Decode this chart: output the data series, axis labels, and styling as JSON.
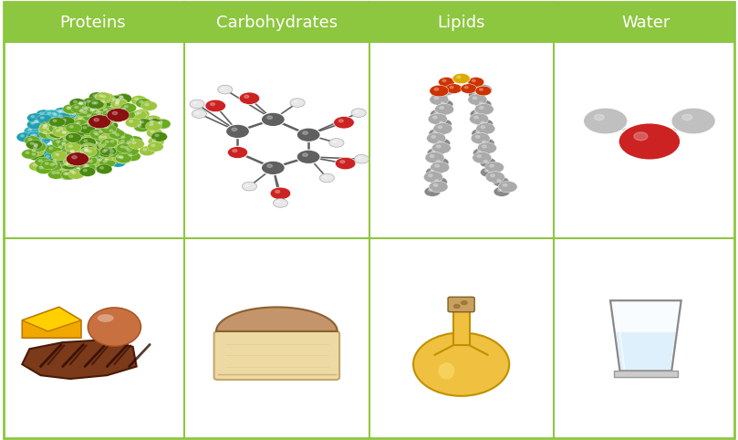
{
  "columns": [
    "Proteins",
    "Carbohydrates",
    "Lipids",
    "Water"
  ],
  "header_bg_color": "#8DC63F",
  "header_text_color": "#ffffff",
  "border_color": "#8DC63F",
  "bg_color": "#ffffff",
  "header_fontsize": 13,
  "fig_width": 8.09,
  "fig_height": 4.82,
  "col_divider_color": "#8DC63F",
  "row_divider_color": "#8DC63F",
  "protein_green_light": "#9DC63F",
  "protein_green_med": "#6AAB20",
  "protein_green_dark": "#4A8B10",
  "protein_teal": "#20A0B0",
  "protein_red": "#8B1010",
  "carb_gray": "#606060",
  "carb_red": "#CC2222",
  "carb_white": "#E8E8E8",
  "lipid_gray_light": "#C8C8C8",
  "lipid_gray_dark": "#888888",
  "lipid_red": "#CC3300",
  "water_red": "#CC2222",
  "water_gray": "#C0C0C0"
}
